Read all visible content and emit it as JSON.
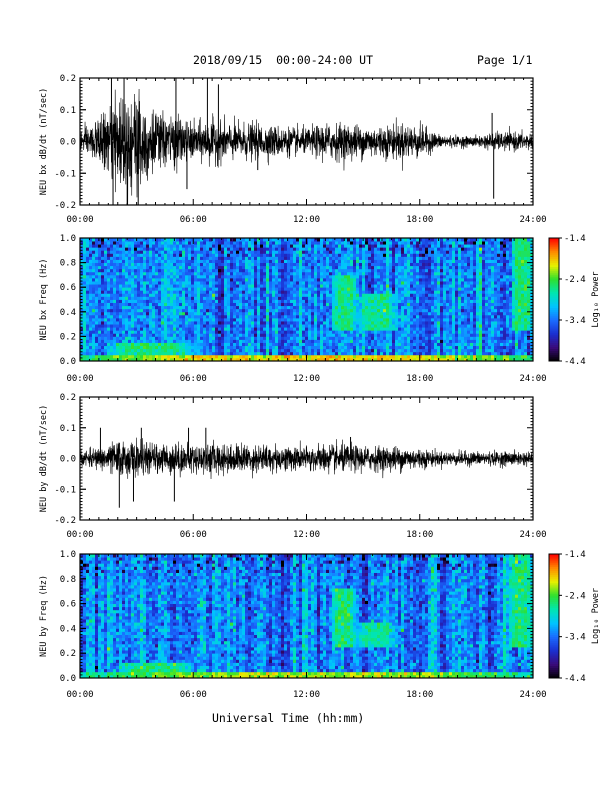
{
  "header": {
    "date_range": "2018/09/15  00:00-24:00 UT",
    "page": "Page 1/1"
  },
  "xlabel": "Universal Time (hh:mm)",
  "colors": {
    "waveform": "#000000",
    "colormap": [
      "#000000",
      "#3a0a7a",
      "#1a2fd0",
      "#1a6cff",
      "#00c4ff",
      "#00e6b0",
      "#2ee02e",
      "#e8f000",
      "#ff8a00",
      "#ff0000"
    ]
  },
  "chart_data": [
    {
      "type": "line",
      "ylabel": "NEU bx dB/dt (nT/sec)",
      "xlim": [
        "00:00",
        "24:00"
      ],
      "ylim": [
        -0.2,
        0.2
      ],
      "xticks": [
        "00:00",
        "06:00",
        "12:00",
        "18:00",
        "24:00"
      ],
      "yticks": [
        "-0.2",
        "-0.1",
        "0.0",
        "0.1",
        "0.2"
      ],
      "envelope": {
        "t_hours": [
          0,
          1,
          2,
          3,
          4,
          5,
          6,
          7,
          8,
          9,
          10,
          11,
          12,
          13,
          14,
          15,
          16,
          17,
          18,
          19,
          20,
          21,
          22,
          23,
          24
        ],
        "amplitude": [
          0.03,
          0.06,
          0.12,
          0.16,
          0.08,
          0.07,
          0.05,
          0.06,
          0.05,
          0.05,
          0.045,
          0.04,
          0.035,
          0.05,
          0.05,
          0.045,
          0.045,
          0.05,
          0.045,
          0.02,
          0.015,
          0.015,
          0.025,
          0.025,
          0.025
        ]
      },
      "spikes": [
        {
          "t": "01:40",
          "value": 0.2
        },
        {
          "t": "01:45",
          "value": -0.2
        },
        {
          "t": "02:20",
          "value": 0.2
        },
        {
          "t": "02:30",
          "value": -0.2
        },
        {
          "t": "03:05",
          "value": -0.2
        },
        {
          "t": "05:05",
          "value": 0.2
        },
        {
          "t": "05:40",
          "value": -0.15
        },
        {
          "t": "06:45",
          "value": 0.2
        },
        {
          "t": "07:20",
          "value": 0.18
        },
        {
          "t": "09:25",
          "value": -0.09
        },
        {
          "t": "21:50",
          "value": 0.09
        },
        {
          "t": "21:55",
          "value": -0.18
        }
      ]
    },
    {
      "type": "heatmap",
      "ylabel": "NEU bx Freq (Hz)",
      "xlim": [
        "00:00",
        "24:00"
      ],
      "ylim": [
        0.0,
        1.0
      ],
      "xticks": [
        "00:00",
        "06:00",
        "12:00",
        "18:00",
        "24:00"
      ],
      "yticks": [
        "0.0",
        "0.2",
        "0.4",
        "0.6",
        "0.8",
        "1.0"
      ],
      "colorbar": {
        "label": "Log₁₀ Power",
        "range": [
          -4.4,
          -1.4
        ],
        "ticks": [
          "-1.4",
          "-2.4",
          "-3.4",
          "-4.4"
        ]
      },
      "features": [
        {
          "desc": "low-frequency band",
          "t_start": "00:00",
          "t_end": "24:00",
          "f_max": 0.04,
          "level": -2.0
        },
        {
          "desc": "morning enhancement",
          "t_start": "01:30",
          "t_end": "06:00",
          "f_max": 0.15,
          "level": -2.6
        },
        {
          "desc": "afternoon band 1",
          "t_start": "13:20",
          "t_end": "14:40",
          "f_min": 0.25,
          "f_max": 0.7,
          "level": -2.6
        },
        {
          "desc": "afternoon band 2",
          "t_start": "14:40",
          "t_end": "16:50",
          "f_min": 0.25,
          "f_max": 0.55,
          "level": -2.7
        },
        {
          "desc": "late band",
          "t_start": "22:50",
          "t_end": "24:00",
          "f_min": 0.25,
          "f_max": 1.0,
          "level": -2.6
        }
      ]
    },
    {
      "type": "line",
      "ylabel": "NEU by dB/dt (nT/sec)",
      "xlim": [
        "00:00",
        "24:00"
      ],
      "ylim": [
        -0.2,
        0.2
      ],
      "xticks": [
        "00:00",
        "06:00",
        "12:00",
        "18:00",
        "24:00"
      ],
      "yticks": [
        "-0.2",
        "-0.1",
        "0.0",
        "0.1",
        "0.2"
      ],
      "envelope": {
        "t_hours": [
          0,
          1,
          2,
          3,
          4,
          5,
          6,
          7,
          8,
          9,
          10,
          11,
          12,
          13,
          14,
          15,
          16,
          17,
          18,
          19,
          20,
          21,
          22,
          23,
          24
        ],
        "amplitude": [
          0.02,
          0.03,
          0.05,
          0.05,
          0.04,
          0.045,
          0.04,
          0.045,
          0.04,
          0.04,
          0.04,
          0.035,
          0.035,
          0.04,
          0.04,
          0.035,
          0.035,
          0.035,
          0.03,
          0.02,
          0.02,
          0.02,
          0.02,
          0.02,
          0.02
        ]
      },
      "spikes": [
        {
          "t": "01:05",
          "value": 0.1
        },
        {
          "t": "02:05",
          "value": -0.16
        },
        {
          "t": "02:50",
          "value": -0.14
        },
        {
          "t": "03:15",
          "value": 0.1
        },
        {
          "t": "05:00",
          "value": -0.14
        },
        {
          "t": "05:45",
          "value": 0.1
        },
        {
          "t": "06:40",
          "value": 0.1
        },
        {
          "t": "14:20",
          "value": 0.07
        }
      ]
    },
    {
      "type": "heatmap",
      "ylabel": "NEU by Freq (Hz)",
      "xlim": [
        "00:00",
        "24:00"
      ],
      "ylim": [
        0.0,
        1.0
      ],
      "xticks": [
        "00:00",
        "06:00",
        "12:00",
        "18:00",
        "24:00"
      ],
      "yticks": [
        "0.0",
        "0.2",
        "0.4",
        "0.6",
        "0.8",
        "1.0"
      ],
      "colorbar": {
        "label": "Log₁₀ Power",
        "range": [
          -4.4,
          -1.4
        ],
        "ticks": [
          "-1.4",
          "-2.4",
          "-3.4",
          "-4.4"
        ]
      },
      "features": [
        {
          "desc": "low-frequency band",
          "t_start": "00:00",
          "t_end": "24:00",
          "f_max": 0.04,
          "level": -2.2
        },
        {
          "desc": "morning enhancement",
          "t_start": "02:00",
          "t_end": "06:00",
          "f_max": 0.12,
          "level": -2.6
        },
        {
          "desc": "afternoon band 1",
          "t_start": "13:20",
          "t_end": "14:40",
          "f_min": 0.25,
          "f_max": 0.72,
          "level": -2.6
        },
        {
          "desc": "afternoon band 2",
          "t_start": "14:40",
          "t_end": "16:40",
          "f_min": 0.25,
          "f_max": 0.45,
          "level": -2.7
        },
        {
          "desc": "late band",
          "t_start": "22:40",
          "t_end": "24:00",
          "f_min": 0.25,
          "f_max": 1.0,
          "level": -2.6
        }
      ]
    }
  ]
}
